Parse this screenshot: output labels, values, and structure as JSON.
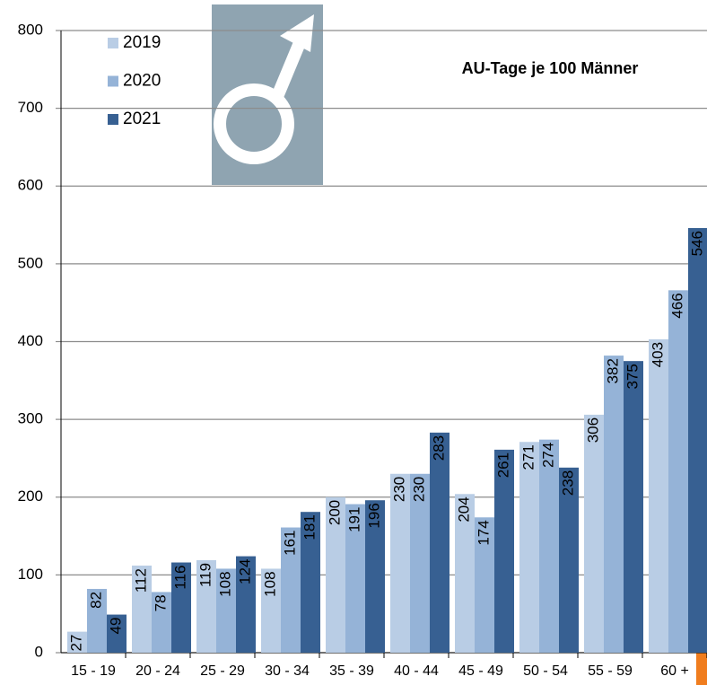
{
  "chart_data": {
    "type": "bar",
    "title": "AU-Tage je 100 Männer",
    "categories": [
      "15 - 19",
      "20 - 24",
      "25 - 29",
      "30 - 34",
      "35 - 39",
      "40 - 44",
      "45 - 49",
      "50 - 54",
      "55 - 59",
      "60 +"
    ],
    "series": [
      {
        "name": "2019",
        "color": "#b9cde5",
        "values": [
          27,
          112,
          119,
          108,
          200,
          230,
          204,
          271,
          306,
          403
        ]
      },
      {
        "name": "2020",
        "color": "#95b3d7",
        "values": [
          82,
          78,
          108,
          161,
          191,
          230,
          174,
          274,
          382,
          466
        ]
      },
      {
        "name": "2021",
        "color": "#376092",
        "values": [
          49,
          116,
          124,
          181,
          196,
          283,
          261,
          238,
          375,
          546
        ]
      }
    ],
    "ylim": [
      0,
      800
    ],
    "yticks": [
      0,
      100,
      200,
      300,
      400,
      500,
      600,
      700,
      800
    ],
    "grid": true,
    "legend": "top-left"
  }
}
